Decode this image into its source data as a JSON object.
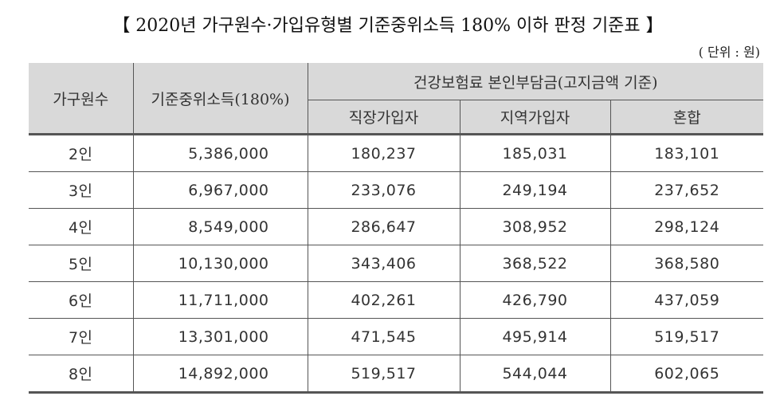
{
  "title": "【 2020년 가구원수·가입유형별 기준중위소득 180% 이하 판정 기준표 】",
  "unit_note": "( 단위 : 원)",
  "table": {
    "headers": {
      "household_size": "가구원수",
      "median_income": "기준중위소득(180%)",
      "premium_group": "건강보험료 본인부담금(고지금액 기준)",
      "employee": "직장가입자",
      "regional": "지역가입자",
      "mixed": "혼합"
    },
    "rows": [
      {
        "household": "2인",
        "income": "5,386,000",
        "employee": "180,237",
        "regional": "185,031",
        "mixed": "183,101"
      },
      {
        "household": "3인",
        "income": "6,967,000",
        "employee": "233,076",
        "regional": "249,194",
        "mixed": "237,652"
      },
      {
        "household": "4인",
        "income": "8,549,000",
        "employee": "286,647",
        "regional": "308,952",
        "mixed": "298,124"
      },
      {
        "household": "5인",
        "income": "10,130,000",
        "employee": "343,406",
        "regional": "368,522",
        "mixed": "368,580"
      },
      {
        "household": "6인",
        "income": "11,711,000",
        "employee": "402,261",
        "regional": "426,790",
        "mixed": "437,059"
      },
      {
        "household": "7인",
        "income": "13,301,000",
        "employee": "471,545",
        "regional": "495,914",
        "mixed": "519,517"
      },
      {
        "household": "8인",
        "income": "14,892,000",
        "employee": "519,517",
        "regional": "544,044",
        "mixed": "602,065"
      }
    ]
  },
  "colors": {
    "header_bg": "#d9d9d9",
    "border": "#555555",
    "text": "#333333"
  }
}
